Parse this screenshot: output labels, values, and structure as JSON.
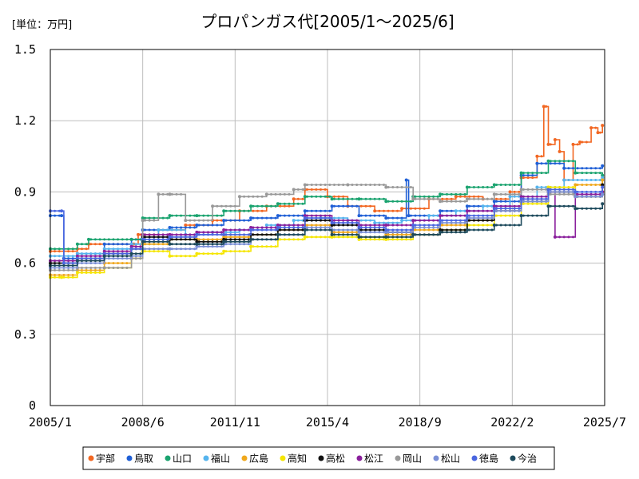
{
  "chart_data": {
    "type": "line",
    "title": "プロパンガス代[2005/1～2025/6]",
    "unit_label": "[単位：万円]",
    "xlabel": "",
    "ylabel": "",
    "ylim": [
      0,
      1.5
    ],
    "y_ticks": [
      "0",
      "0.3",
      "0.6",
      "0.9",
      "1.2",
      "1.5"
    ],
    "x_range": [
      "2005-01",
      "2025-07"
    ],
    "x_ticks": [
      "2005/1",
      "2008/6",
      "2011/11",
      "2015/4",
      "2018/9",
      "2022/2",
      "2025/7"
    ],
    "grid": true,
    "legend_position": "bottom",
    "series": [
      {
        "name": "宇部",
        "color": "#f26722",
        "points": [
          [
            "2005-01",
            0.65
          ],
          [
            "2006-01",
            0.66
          ],
          [
            "2006-06",
            0.68
          ],
          [
            "2008-02",
            0.68
          ],
          [
            "2008-04",
            0.72
          ],
          [
            "2009-01",
            0.74
          ],
          [
            "2010-01",
            0.76
          ],
          [
            "2011-01",
            0.78
          ],
          [
            "2012-01",
            0.82
          ],
          [
            "2013-01",
            0.84
          ],
          [
            "2014-01",
            0.87
          ],
          [
            "2014-06",
            0.91
          ],
          [
            "2015-04",
            0.88
          ],
          [
            "2016-01",
            0.84
          ],
          [
            "2017-01",
            0.82
          ],
          [
            "2018-01",
            0.83
          ],
          [
            "2019-01",
            0.87
          ],
          [
            "2020-01",
            0.88
          ],
          [
            "2021-01",
            0.87
          ],
          [
            "2022-01",
            0.9
          ],
          [
            "2022-06",
            0.96
          ],
          [
            "2023-01",
            1.05
          ],
          [
            "2023-04",
            1.26
          ],
          [
            "2023-06",
            1.1
          ],
          [
            "2023-09",
            1.12
          ],
          [
            "2023-11",
            1.07
          ],
          [
            "2024-01",
            0.95
          ],
          [
            "2024-05",
            1.1
          ],
          [
            "2024-08",
            1.11
          ],
          [
            "2025-01",
            1.17
          ],
          [
            "2025-04",
            1.15
          ],
          [
            "2025-06",
            1.18
          ]
        ]
      },
      {
        "name": "鳥取",
        "color": "#1f5fd6",
        "points": [
          [
            "2005-01",
            0.8
          ],
          [
            "2005-06",
            0.8
          ],
          [
            "2005-07",
            0.62
          ],
          [
            "2006-01",
            0.64
          ],
          [
            "2007-01",
            0.68
          ],
          [
            "2008-01",
            0.7
          ],
          [
            "2008-06",
            0.74
          ],
          [
            "2009-06",
            0.75
          ],
          [
            "2010-06",
            0.76
          ],
          [
            "2011-06",
            0.78
          ],
          [
            "2012-06",
            0.79
          ],
          [
            "2013-06",
            0.8
          ],
          [
            "2014-06",
            0.82
          ],
          [
            "2015-06",
            0.84
          ],
          [
            "2016-06",
            0.8
          ],
          [
            "2017-06",
            0.79
          ],
          [
            "2018-03",
            0.95
          ],
          [
            "2018-04",
            0.8
          ],
          [
            "2019-06",
            0.82
          ],
          [
            "2020-06",
            0.84
          ],
          [
            "2021-06",
            0.86
          ],
          [
            "2022-06",
            0.97
          ],
          [
            "2023-01",
            1.02
          ],
          [
            "2024-01",
            1.0
          ],
          [
            "2025-06",
            1.01
          ]
        ]
      },
      {
        "name": "山口",
        "color": "#1aa36f",
        "points": [
          [
            "2005-01",
            0.66
          ],
          [
            "2006-01",
            0.68
          ],
          [
            "2006-06",
            0.7
          ],
          [
            "2008-01",
            0.7
          ],
          [
            "2008-06",
            0.79
          ],
          [
            "2009-06",
            0.8
          ],
          [
            "2010-06",
            0.8
          ],
          [
            "2011-06",
            0.82
          ],
          [
            "2012-06",
            0.84
          ],
          [
            "2013-06",
            0.85
          ],
          [
            "2014-06",
            0.88
          ],
          [
            "2015-06",
            0.87
          ],
          [
            "2016-06",
            0.87
          ],
          [
            "2017-06",
            0.86
          ],
          [
            "2018-06",
            0.88
          ],
          [
            "2019-06",
            0.89
          ],
          [
            "2020-06",
            0.92
          ],
          [
            "2021-06",
            0.93
          ],
          [
            "2022-06",
            0.98
          ],
          [
            "2023-06",
            1.03
          ],
          [
            "2024-06",
            0.98
          ],
          [
            "2025-06",
            0.97
          ]
        ]
      },
      {
        "name": "福山",
        "color": "#55b4ee",
        "points": [
          [
            "2005-01",
            0.63
          ],
          [
            "2006-01",
            0.64
          ],
          [
            "2007-01",
            0.66
          ],
          [
            "2008-01",
            0.68
          ],
          [
            "2009-01",
            0.74
          ],
          [
            "2010-01",
            0.72
          ],
          [
            "2011-01",
            0.73
          ],
          [
            "2012-01",
            0.74
          ],
          [
            "2013-01",
            0.76
          ],
          [
            "2014-01",
            0.78
          ],
          [
            "2015-01",
            0.79
          ],
          [
            "2016-01",
            0.78
          ],
          [
            "2017-01",
            0.77
          ],
          [
            "2018-01",
            0.78
          ],
          [
            "2019-01",
            0.8
          ],
          [
            "2020-01",
            0.82
          ],
          [
            "2021-01",
            0.84
          ],
          [
            "2022-01",
            0.88
          ],
          [
            "2023-01",
            0.92
          ],
          [
            "2024-01",
            0.95
          ],
          [
            "2025-06",
            0.96
          ]
        ]
      },
      {
        "name": "広島",
        "color": "#f0a81c",
        "points": [
          [
            "2005-01",
            0.55
          ],
          [
            "2006-01",
            0.57
          ],
          [
            "2007-01",
            0.6
          ],
          [
            "2008-01",
            0.62
          ],
          [
            "2008-06",
            0.68
          ],
          [
            "2009-06",
            0.7
          ],
          [
            "2010-06",
            0.7
          ],
          [
            "2011-06",
            0.71
          ],
          [
            "2012-06",
            0.72
          ],
          [
            "2013-06",
            0.74
          ],
          [
            "2014-06",
            0.76
          ],
          [
            "2015-06",
            0.73
          ],
          [
            "2016-06",
            0.71
          ],
          [
            "2017-06",
            0.72
          ],
          [
            "2018-06",
            0.74
          ],
          [
            "2019-06",
            0.76
          ],
          [
            "2020-06",
            0.78
          ],
          [
            "2021-06",
            0.82
          ],
          [
            "2022-06",
            0.86
          ],
          [
            "2023-06",
            0.9
          ],
          [
            "2024-06",
            0.93
          ],
          [
            "2025-06",
            0.95
          ]
        ]
      },
      {
        "name": "高知",
        "color": "#f5e600",
        "points": [
          [
            "2005-01",
            0.54
          ],
          [
            "2005-06",
            0.54
          ],
          [
            "2006-01",
            0.56
          ],
          [
            "2007-01",
            0.58
          ],
          [
            "2008-01",
            0.62
          ],
          [
            "2008-06",
            0.65
          ],
          [
            "2009-06",
            0.63
          ],
          [
            "2010-06",
            0.64
          ],
          [
            "2011-06",
            0.65
          ],
          [
            "2012-06",
            0.67
          ],
          [
            "2013-06",
            0.7
          ],
          [
            "2014-06",
            0.71
          ],
          [
            "2015-06",
            0.71
          ],
          [
            "2016-06",
            0.7
          ],
          [
            "2017-06",
            0.7
          ],
          [
            "2018-06",
            0.72
          ],
          [
            "2019-06",
            0.74
          ],
          [
            "2020-06",
            0.76
          ],
          [
            "2021-06",
            0.8
          ],
          [
            "2022-06",
            0.85
          ],
          [
            "2023-06",
            0.92
          ],
          [
            "2024-06",
            0.88
          ],
          [
            "2025-06",
            0.9
          ]
        ]
      },
      {
        "name": "高松",
        "color": "#111111",
        "points": [
          [
            "2005-01",
            0.6
          ],
          [
            "2006-01",
            0.62
          ],
          [
            "2007-01",
            0.64
          ],
          [
            "2008-01",
            0.66
          ],
          [
            "2008-06",
            0.71
          ],
          [
            "2009-06",
            0.7
          ],
          [
            "2010-06",
            0.69
          ],
          [
            "2011-06",
            0.7
          ],
          [
            "2012-06",
            0.72
          ],
          [
            "2013-06",
            0.74
          ],
          [
            "2014-06",
            0.78
          ],
          [
            "2015-06",
            0.76
          ],
          [
            "2016-06",
            0.74
          ],
          [
            "2017-06",
            0.73
          ],
          [
            "2018-06",
            0.72
          ],
          [
            "2019-06",
            0.74
          ],
          [
            "2020-06",
            0.78
          ],
          [
            "2021-06",
            0.82
          ],
          [
            "2022-06",
            0.86
          ],
          [
            "2023-06",
            0.9
          ],
          [
            "2024-06",
            0.88
          ],
          [
            "2025-06",
            0.93
          ]
        ]
      },
      {
        "name": "松江",
        "color": "#8a1f9c",
        "points": [
          [
            "2005-01",
            0.61
          ],
          [
            "2006-01",
            0.63
          ],
          [
            "2007-01",
            0.65
          ],
          [
            "2008-01",
            0.67
          ],
          [
            "2008-06",
            0.72
          ],
          [
            "2009-06",
            0.72
          ],
          [
            "2010-06",
            0.73
          ],
          [
            "2011-06",
            0.74
          ],
          [
            "2012-06",
            0.75
          ],
          [
            "2013-06",
            0.76
          ],
          [
            "2014-06",
            0.8
          ],
          [
            "2015-06",
            0.78
          ],
          [
            "2016-06",
            0.76
          ],
          [
            "2017-06",
            0.76
          ],
          [
            "2018-06",
            0.78
          ],
          [
            "2019-06",
            0.8
          ],
          [
            "2020-06",
            0.82
          ],
          [
            "2021-06",
            0.84
          ],
          [
            "2022-06",
            0.88
          ],
          [
            "2023-06",
            0.9
          ],
          [
            "2023-09",
            0.71
          ],
          [
            "2024-06",
            0.89
          ],
          [
            "2025-06",
            0.9
          ]
        ]
      },
      {
        "name": "岡山",
        "color": "#999999",
        "points": [
          [
            "2005-01",
            0.57
          ],
          [
            "2006-01",
            0.58
          ],
          [
            "2007-01",
            0.58
          ],
          [
            "2008-01",
            0.62
          ],
          [
            "2008-06",
            0.78
          ],
          [
            "2009-01",
            0.89
          ],
          [
            "2009-06",
            0.89
          ],
          [
            "2010-01",
            0.78
          ],
          [
            "2011-01",
            0.84
          ],
          [
            "2012-01",
            0.88
          ],
          [
            "2013-01",
            0.89
          ],
          [
            "2014-01",
            0.91
          ],
          [
            "2014-06",
            0.93
          ],
          [
            "2016-01",
            0.93
          ],
          [
            "2017-06",
            0.92
          ],
          [
            "2018-06",
            0.87
          ],
          [
            "2019-06",
            0.86
          ],
          [
            "2020-06",
            0.87
          ],
          [
            "2021-06",
            0.89
          ],
          [
            "2022-06",
            0.91
          ],
          [
            "2023-06",
            0.89
          ],
          [
            "2024-06",
            0.88
          ],
          [
            "2025-06",
            0.89
          ]
        ]
      },
      {
        "name": "松山",
        "color": "#7a8fd6",
        "points": [
          [
            "2005-01",
            0.58
          ],
          [
            "2006-01",
            0.6
          ],
          [
            "2007-01",
            0.62
          ],
          [
            "2008-01",
            0.63
          ],
          [
            "2008-06",
            0.66
          ],
          [
            "2009-06",
            0.66
          ],
          [
            "2010-06",
            0.67
          ],
          [
            "2011-06",
            0.68
          ],
          [
            "2012-06",
            0.7
          ],
          [
            "2013-06",
            0.72
          ],
          [
            "2014-06",
            0.75
          ],
          [
            "2015-06",
            0.74
          ],
          [
            "2016-06",
            0.73
          ],
          [
            "2017-06",
            0.73
          ],
          [
            "2018-06",
            0.75
          ],
          [
            "2019-06",
            0.77
          ],
          [
            "2020-06",
            0.79
          ],
          [
            "2021-06",
            0.82
          ],
          [
            "2022-06",
            0.86
          ],
          [
            "2023-06",
            0.9
          ],
          [
            "2024-06",
            0.88
          ],
          [
            "2025-06",
            0.89
          ]
        ]
      },
      {
        "name": "徳島",
        "color": "#4a66e0",
        "points": [
          [
            "2005-01",
            0.82
          ],
          [
            "2005-06",
            0.82
          ],
          [
            "2005-07",
            0.6
          ],
          [
            "2006-01",
            0.62
          ],
          [
            "2007-01",
            0.64
          ],
          [
            "2008-01",
            0.66
          ],
          [
            "2008-06",
            0.7
          ],
          [
            "2009-06",
            0.71
          ],
          [
            "2010-06",
            0.72
          ],
          [
            "2011-06",
            0.72
          ],
          [
            "2012-06",
            0.74
          ],
          [
            "2013-06",
            0.75
          ],
          [
            "2014-06",
            0.79
          ],
          [
            "2015-06",
            0.77
          ],
          [
            "2016-06",
            0.75
          ],
          [
            "2017-06",
            0.74
          ],
          [
            "2018-06",
            0.76
          ],
          [
            "2019-06",
            0.78
          ],
          [
            "2020-06",
            0.8
          ],
          [
            "2021-06",
            0.83
          ],
          [
            "2022-06",
            0.87
          ],
          [
            "2023-06",
            0.91
          ],
          [
            "2024-06",
            0.9
          ],
          [
            "2025-06",
            0.92
          ]
        ]
      },
      {
        "name": "今治",
        "color": "#1d4a5c",
        "points": [
          [
            "2005-01",
            0.59
          ],
          [
            "2006-01",
            0.61
          ],
          [
            "2007-01",
            0.63
          ],
          [
            "2008-01",
            0.64
          ],
          [
            "2008-06",
            0.69
          ],
          [
            "2009-06",
            0.68
          ],
          [
            "2010-06",
            0.68
          ],
          [
            "2011-06",
            0.69
          ],
          [
            "2012-06",
            0.7
          ],
          [
            "2013-06",
            0.72
          ],
          [
            "2014-06",
            0.74
          ],
          [
            "2015-06",
            0.72
          ],
          [
            "2016-06",
            0.71
          ],
          [
            "2017-06",
            0.71
          ],
          [
            "2018-06",
            0.72
          ],
          [
            "2019-06",
            0.73
          ],
          [
            "2020-06",
            0.74
          ],
          [
            "2021-06",
            0.76
          ],
          [
            "2022-06",
            0.8
          ],
          [
            "2023-06",
            0.84
          ],
          [
            "2024-06",
            0.83
          ],
          [
            "2025-06",
            0.85
          ]
        ]
      }
    ]
  }
}
